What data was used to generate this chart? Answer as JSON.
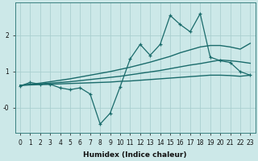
{
  "xlabel": "Humidex (Indice chaleur)",
  "ylabel": "",
  "bg_color": "#cce8e8",
  "line_color": "#1a6b6b",
  "grid_color": "#aacfcf",
  "x_main": [
    0,
    1,
    2,
    3,
    4,
    5,
    6,
    7,
    8,
    9,
    10,
    11,
    12,
    13,
    14,
    15,
    16,
    17,
    18,
    19,
    20,
    21,
    22,
    23
  ],
  "y_main": [
    0.6,
    0.7,
    0.65,
    0.65,
    0.55,
    0.5,
    0.55,
    0.38,
    -0.45,
    -0.15,
    0.58,
    1.35,
    1.75,
    1.45,
    1.75,
    2.55,
    2.3,
    2.1,
    2.6,
    1.4,
    1.3,
    1.25,
    1.0,
    0.9
  ],
  "x_smooth": [
    0,
    1,
    2,
    3,
    4,
    5,
    6,
    7,
    8,
    9,
    10,
    11,
    12,
    13,
    14,
    15,
    16,
    17,
    18,
    19,
    20,
    21,
    22,
    23
  ],
  "y_upper": [
    0.62,
    0.65,
    0.68,
    0.72,
    0.76,
    0.8,
    0.85,
    0.9,
    0.95,
    1.0,
    1.06,
    1.12,
    1.19,
    1.26,
    1.34,
    1.42,
    1.52,
    1.6,
    1.68,
    1.72,
    1.72,
    1.68,
    1.62,
    1.78
  ],
  "y_mid": [
    0.62,
    0.64,
    0.66,
    0.68,
    0.7,
    0.72,
    0.75,
    0.78,
    0.81,
    0.84,
    0.87,
    0.91,
    0.95,
    0.99,
    1.03,
    1.08,
    1.13,
    1.18,
    1.22,
    1.27,
    1.32,
    1.3,
    1.27,
    1.23
  ],
  "y_lower": [
    0.62,
    0.63,
    0.64,
    0.65,
    0.66,
    0.67,
    0.68,
    0.69,
    0.7,
    0.71,
    0.73,
    0.74,
    0.76,
    0.78,
    0.8,
    0.82,
    0.84,
    0.86,
    0.88,
    0.9,
    0.9,
    0.89,
    0.87,
    0.9
  ],
  "xlim": [
    -0.5,
    23.5
  ],
  "ylim": [
    -0.7,
    2.9
  ],
  "ytick_vals": [
    0.0,
    1.0,
    2.0
  ],
  "ytick_labels": [
    "-0",
    "1",
    "2"
  ],
  "xticks": [
    0,
    1,
    2,
    3,
    4,
    5,
    6,
    7,
    8,
    9,
    10,
    11,
    12,
    13,
    14,
    15,
    16,
    17,
    18,
    19,
    20,
    21,
    22,
    23
  ]
}
